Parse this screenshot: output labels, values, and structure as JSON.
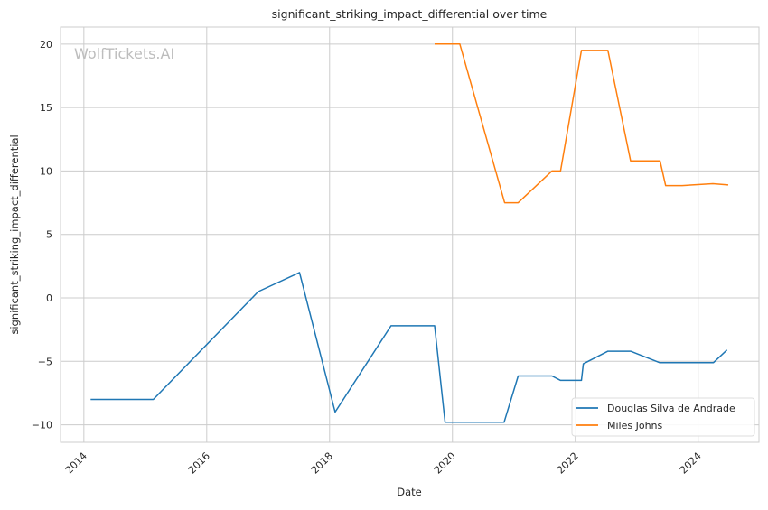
{
  "watermark": "WolfTickets.AI",
  "chart_data": {
    "type": "line",
    "title": "significant_striking_impact_differential over time",
    "xlabel": "Date",
    "ylabel": "significant_striking_impact_differential",
    "xlim": [
      2013.62,
      2024.99
    ],
    "ylim": [
      -11.38,
      21.34
    ],
    "xticks": [
      2014,
      2016,
      2018,
      2020,
      2022,
      2024
    ],
    "xtick_labels": [
      "2014",
      "2016",
      "2018",
      "2020",
      "2022",
      "2024"
    ],
    "yticks": [
      -10,
      -5,
      0,
      5,
      10,
      15,
      20
    ],
    "ytick_labels": [
      "−10",
      "−5",
      "0",
      "5",
      "10",
      "15",
      "20"
    ],
    "grid": true,
    "legend_position": "bottom-right",
    "series": [
      {
        "name": "Douglas Silva de Andrade",
        "color": "#1f77b4",
        "x": [
          2014.11,
          2015.13,
          2016.84,
          2017.51,
          2018.09,
          2019.0,
          2019.71,
          2019.88,
          2020.84,
          2021.07,
          2021.62,
          2021.76,
          2022.1,
          2022.13,
          2022.53,
          2022.9,
          2023.37,
          2024.25,
          2024.47
        ],
        "y": [
          -8.0,
          -8.0,
          0.5,
          2.0,
          -9.0,
          -2.2,
          -2.2,
          -9.8,
          -9.8,
          -6.15,
          -6.15,
          -6.5,
          -6.5,
          -5.2,
          -4.2,
          -4.2,
          -5.1,
          -5.1,
          -4.1
        ]
      },
      {
        "name": "Miles Johns",
        "color": "#ff7f0e",
        "x": [
          2019.71,
          2020.12,
          2020.85,
          2021.07,
          2021.62,
          2021.76,
          2022.1,
          2022.53,
          2022.9,
          2023.38,
          2023.47,
          2023.74,
          2024.24,
          2024.49
        ],
        "y": [
          20.0,
          20.0,
          7.5,
          7.5,
          10.0,
          10.0,
          19.5,
          19.5,
          10.8,
          10.8,
          8.85,
          8.85,
          9.0,
          8.9
        ]
      }
    ]
  }
}
